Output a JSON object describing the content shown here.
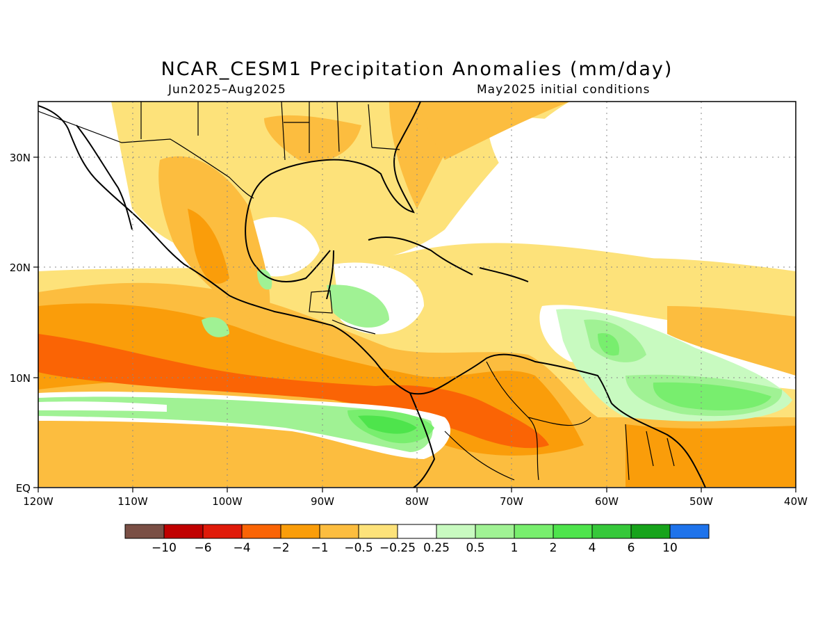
{
  "title": "NCAR_CESM1 Precipitation Anomalies (mm/day)",
  "subtitle_left": "Jun2025–Aug2025",
  "subtitle_right": "May2025 initial conditions",
  "map": {
    "region": "Central America, Caribbean and northern South America",
    "lon_range": [
      -120,
      -40
    ],
    "lat_range": [
      0,
      35
    ],
    "x_ticks": [
      "120W",
      "110W",
      "100W",
      "90W",
      "80W",
      "70W",
      "60W",
      "50W",
      "40W"
    ],
    "y_ticks": [
      "EQ",
      "10N",
      "20N",
      "30N"
    ],
    "gridlines": "dotted",
    "features": [
      "coastlines",
      "country borders",
      "US state borders"
    ]
  },
  "colorbar": {
    "colors": [
      "#7a4f45",
      "#c00000",
      "#e01a0a",
      "#fa6405",
      "#fa9d0a",
      "#fcbd3f",
      "#fde27a",
      "#ffffff",
      "#c8fac0",
      "#a0f294",
      "#78ee6e",
      "#4ee44c",
      "#36c83a",
      "#17a31b",
      "#1e73eb"
    ],
    "labels": [
      "−10",
      "−6",
      "−4",
      "−2",
      "−1",
      "−0.5",
      "−0.25",
      "0.25",
      "0.5",
      "1",
      "2",
      "4",
      "6",
      "10"
    ]
  }
}
